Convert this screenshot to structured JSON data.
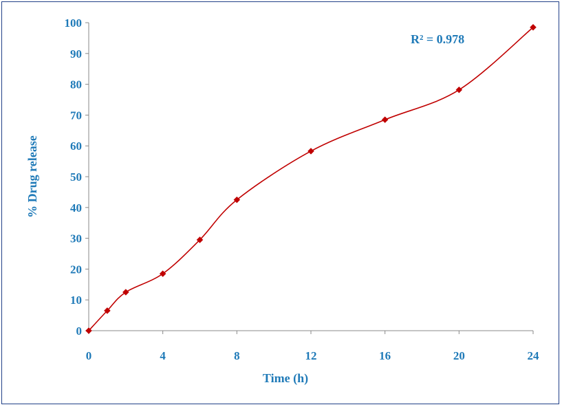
{
  "chart_data": {
    "type": "line",
    "title": "",
    "xlabel": "Time (h)",
    "ylabel": "% Drug release",
    "xlim": [
      0,
      24
    ],
    "ylim": [
      0,
      100
    ],
    "x_ticks": [
      "0",
      "4",
      "8",
      "12",
      "16",
      "20",
      "24"
    ],
    "y_ticks": [
      "0",
      "10",
      "20",
      "30",
      "40",
      "50",
      "60",
      "70",
      "80",
      "90",
      "100"
    ],
    "series": [
      {
        "x": [
          0,
          1,
          2,
          4,
          6,
          8,
          12,
          16,
          20,
          24
        ],
        "y": [
          0,
          6.5,
          12.5,
          18.5,
          29.5,
          42.5,
          58.3,
          68.5,
          78.2,
          98.5
        ]
      }
    ],
    "annotation": "R² = 0.978",
    "grid": false,
    "colors": {
      "line": "#c00000",
      "marker": "#c00000",
      "text": "#1f7ab8",
      "axis": "#888888",
      "border": "#1f3f87"
    }
  }
}
